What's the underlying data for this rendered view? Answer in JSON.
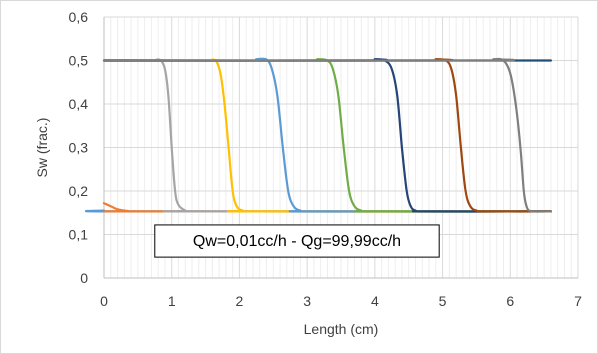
{
  "chart_data": {
    "type": "line",
    "title": "",
    "xlabel": "Length (cm)",
    "ylabel": "Sw (frac.)",
    "xlim": [
      0,
      7
    ],
    "ylim": [
      0,
      0.6
    ],
    "x_ticks": [
      0,
      1,
      2,
      3,
      4,
      5,
      6,
      7
    ],
    "y_ticks": [
      0,
      0.1,
      0.2,
      0.3,
      0.4,
      0.5,
      0.6
    ],
    "x_tick_labels": [
      "0",
      "1",
      "2",
      "3",
      "4",
      "5",
      "6",
      "7"
    ],
    "y_tick_labels": [
      "0",
      "0,1",
      "0,2",
      "0,3",
      "0,4",
      "0,5",
      "0,6"
    ],
    "grid": true,
    "legend": "none",
    "annotation": "Qw=0,01cc/h - Qg=99,99cc/h",
    "series": [
      {
        "color": "#1f4e79",
        "x": [
          0,
          6.6
        ],
        "y": [
          0.5,
          0.5
        ]
      },
      {
        "color": "#5b9bd5",
        "x": [
          0,
          0.3,
          6.6
        ],
        "y": [
          0.155,
          0.153,
          0.153
        ]
      },
      {
        "color": "#ed7d31",
        "x": [
          0,
          0.1,
          0.2,
          0.35,
          0.5,
          6.6
        ],
        "y": [
          0.172,
          0.165,
          0.158,
          0.154,
          0.153,
          0.153
        ]
      },
      {
        "color": "#a5a5a5",
        "x": [
          0,
          0.7,
          0.78,
          0.84,
          0.9,
          0.95,
          1.0,
          1.05,
          1.1,
          1.2,
          1.3,
          6.6
        ],
        "y": [
          0.5,
          0.5,
          0.502,
          0.5,
          0.48,
          0.42,
          0.3,
          0.2,
          0.168,
          0.155,
          0.153,
          0.153
        ]
      },
      {
        "color": "#ffc000",
        "x": [
          0,
          1.5,
          1.6,
          1.66,
          1.72,
          1.78,
          1.84,
          1.9,
          1.96,
          2.05,
          2.2,
          6.6
        ],
        "y": [
          0.5,
          0.5,
          0.502,
          0.498,
          0.47,
          0.4,
          0.3,
          0.2,
          0.165,
          0.155,
          0.153,
          0.153
        ]
      },
      {
        "color": "#5b9bd5",
        "x": [
          0,
          2.1,
          2.25,
          2.4,
          2.48,
          2.56,
          2.64,
          2.72,
          2.8,
          2.9,
          3.05,
          6.6
        ],
        "y": [
          0.5,
          0.5,
          0.503,
          0.502,
          0.48,
          0.42,
          0.3,
          0.2,
          0.165,
          0.155,
          0.153,
          0.153
        ]
      },
      {
        "color": "#70ad47",
        "x": [
          0,
          3.0,
          3.15,
          3.3,
          3.38,
          3.46,
          3.54,
          3.62,
          3.7,
          3.8,
          3.95,
          6.6
        ],
        "y": [
          0.5,
          0.5,
          0.503,
          0.5,
          0.48,
          0.42,
          0.3,
          0.2,
          0.165,
          0.155,
          0.153,
          0.153
        ]
      },
      {
        "color": "#264478",
        "x": [
          0,
          3.85,
          4.0,
          4.15,
          4.25,
          4.33,
          4.4,
          4.47,
          4.53,
          4.6,
          4.75,
          6.6
        ],
        "y": [
          0.5,
          0.5,
          0.503,
          0.5,
          0.48,
          0.42,
          0.3,
          0.2,
          0.165,
          0.155,
          0.153,
          0.153
        ]
      },
      {
        "color": "#9e480e",
        "x": [
          0,
          4.75,
          4.9,
          5.05,
          5.13,
          5.2,
          5.27,
          5.34,
          5.41,
          5.5,
          5.65,
          6.6
        ],
        "y": [
          0.5,
          0.5,
          0.503,
          0.5,
          0.48,
          0.42,
          0.3,
          0.2,
          0.165,
          0.155,
          0.153,
          0.153
        ]
      },
      {
        "color": "#7f7f7f",
        "x": [
          0,
          5.6,
          5.75,
          5.9,
          6.0,
          6.08,
          6.15,
          6.2,
          6.24,
          6.28,
          6.35,
          6.6
        ],
        "y": [
          0.5,
          0.5,
          0.503,
          0.5,
          0.47,
          0.4,
          0.3,
          0.2,
          0.165,
          0.155,
          0.153,
          0.153
        ]
      }
    ]
  }
}
